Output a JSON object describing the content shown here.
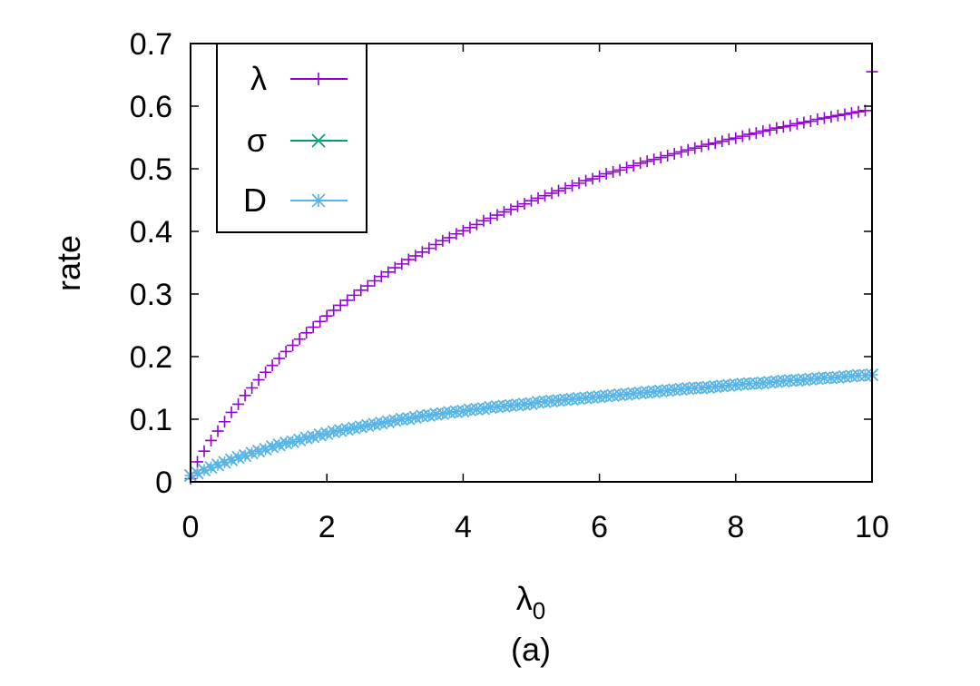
{
  "chart_data": {
    "type": "scatter",
    "title": "",
    "xlabel": "λ",
    "xlabel_sub": "0",
    "ylabel": "rate",
    "caption": "(a)",
    "xlim": [
      0,
      10
    ],
    "ylim": [
      0,
      0.7
    ],
    "xticks": [
      "0",
      "2",
      "4",
      "6",
      "8",
      "10"
    ],
    "yticks": [
      "0",
      "0.1",
      "0.2",
      "0.3",
      "0.4",
      "0.5",
      "0.6",
      "0.7"
    ],
    "grid": false,
    "legend_position": "top-left",
    "series": [
      {
        "name": "λ",
        "marker": "plus",
        "color": "#9400d3",
        "x": [
          0,
          0.1,
          0.2,
          0.3,
          0.4,
          0.5,
          0.6,
          0.7,
          0.8,
          0.9,
          1.0,
          1.1,
          1.2,
          1.3,
          1.4,
          1.5,
          1.6,
          1.7,
          1.8,
          1.9,
          2.0,
          2.1,
          2.2,
          2.3,
          2.4,
          2.5,
          2.6,
          2.7,
          2.8,
          2.9,
          3.0,
          3.1,
          3.2,
          3.3,
          3.4,
          3.5,
          3.6,
          3.7,
          3.8,
          3.9,
          4.0,
          4.1,
          4.2,
          4.3,
          4.4,
          4.5,
          4.6,
          4.7,
          4.8,
          4.9,
          5.0,
          5.1,
          5.2,
          5.3,
          5.4,
          5.5,
          5.6,
          5.7,
          5.8,
          5.9,
          6.0,
          6.1,
          6.2,
          6.3,
          6.4,
          6.5,
          6.6,
          6.7,
          6.8,
          6.9,
          7.0,
          7.1,
          7.2,
          7.3,
          7.4,
          7.5,
          7.6,
          7.7,
          7.8,
          7.9,
          8.0,
          8.1,
          8.2,
          8.3,
          8.4,
          8.5,
          8.6,
          8.7,
          8.8,
          8.9,
          9.0,
          9.1,
          9.2,
          9.3,
          9.4,
          9.5,
          9.6,
          9.7,
          9.8,
          9.9,
          10.0
        ],
        "y": [
          0.005,
          0.032,
          0.049,
          0.066,
          0.081,
          0.096,
          0.111,
          0.124,
          0.138,
          0.15,
          0.163,
          0.175,
          0.186,
          0.197,
          0.208,
          0.218,
          0.228,
          0.238,
          0.247,
          0.256,
          0.265,
          0.274,
          0.282,
          0.29,
          0.298,
          0.306,
          0.313,
          0.321,
          0.328,
          0.335,
          0.342,
          0.348,
          0.355,
          0.361,
          0.367,
          0.373,
          0.379,
          0.385,
          0.39,
          0.396,
          0.401,
          0.406,
          0.411,
          0.417,
          0.421,
          0.426,
          0.431,
          0.435,
          0.44,
          0.444,
          0.449,
          0.453,
          0.457,
          0.461,
          0.465,
          0.469,
          0.473,
          0.477,
          0.481,
          0.484,
          0.488,
          0.492,
          0.495,
          0.498,
          0.502,
          0.505,
          0.509,
          0.512,
          0.515,
          0.518,
          0.521,
          0.524,
          0.527,
          0.53,
          0.533,
          0.536,
          0.539,
          0.541,
          0.544,
          0.547,
          0.549,
          0.552,
          0.555,
          0.557,
          0.56,
          0.562,
          0.565,
          0.567,
          0.569,
          0.572,
          0.574,
          0.576,
          0.579,
          0.581,
          0.583,
          0.585,
          0.587,
          0.589,
          0.591,
          0.593,
          0.655
        ]
      },
      {
        "name": "σ",
        "marker": "cross",
        "color": "#009e73",
        "x": [
          0,
          0.1,
          0.2,
          0.3,
          0.4,
          0.5,
          0.6,
          0.7,
          0.8,
          0.9,
          1.0,
          1.1,
          1.2,
          1.3,
          1.4,
          1.5,
          1.6,
          1.7,
          1.8,
          1.9,
          2.0,
          2.1,
          2.2,
          2.3,
          2.4,
          2.5,
          2.6,
          2.7,
          2.8,
          2.9,
          3.0,
          3.1,
          3.2,
          3.3,
          3.4,
          3.5,
          3.6,
          3.7,
          3.8,
          3.9,
          4.0,
          4.1,
          4.2,
          4.3,
          4.4,
          4.5,
          4.6,
          4.7,
          4.8,
          4.9,
          5.0,
          5.1,
          5.2,
          5.3,
          5.4,
          5.5,
          5.6,
          5.7,
          5.8,
          5.9,
          6.0,
          6.1,
          6.2,
          6.3,
          6.4,
          6.5,
          6.6,
          6.7,
          6.8,
          6.9,
          7.0,
          7.1,
          7.2,
          7.3,
          7.4,
          7.5,
          7.6,
          7.7,
          7.8,
          7.9,
          8.0,
          8.1,
          8.2,
          8.3,
          8.4,
          8.5,
          8.6,
          8.7,
          8.8,
          8.9,
          9.0,
          9.1,
          9.2,
          9.3,
          9.4,
          9.5,
          9.6,
          9.7,
          9.8,
          9.9,
          10.0
        ],
        "y": [
          0.01,
          0.014,
          0.019,
          0.023,
          0.027,
          0.031,
          0.035,
          0.039,
          0.042,
          0.046,
          0.049,
          0.052,
          0.056,
          0.059,
          0.062,
          0.064,
          0.067,
          0.07,
          0.072,
          0.075,
          0.077,
          0.08,
          0.082,
          0.084,
          0.086,
          0.088,
          0.09,
          0.092,
          0.094,
          0.096,
          0.098,
          0.1,
          0.101,
          0.103,
          0.105,
          0.106,
          0.108,
          0.109,
          0.111,
          0.112,
          0.113,
          0.115,
          0.116,
          0.117,
          0.119,
          0.12,
          0.121,
          0.122,
          0.123,
          0.124,
          0.125,
          0.127,
          0.128,
          0.129,
          0.13,
          0.131,
          0.132,
          0.133,
          0.134,
          0.135,
          0.136,
          0.137,
          0.138,
          0.139,
          0.14,
          0.141,
          0.142,
          0.143,
          0.144,
          0.145,
          0.146,
          0.147,
          0.148,
          0.149,
          0.15,
          0.15,
          0.151,
          0.152,
          0.153,
          0.154,
          0.155,
          0.156,
          0.157,
          0.157,
          0.158,
          0.159,
          0.16,
          0.161,
          0.162,
          0.162,
          0.163,
          0.164,
          0.165,
          0.166,
          0.166,
          0.167,
          0.168,
          0.169,
          0.17,
          0.17,
          0.171
        ]
      },
      {
        "name": "D",
        "marker": "star",
        "color": "#56b4e9",
        "x": [
          0,
          0.1,
          0.2,
          0.3,
          0.4,
          0.5,
          0.6,
          0.7,
          0.8,
          0.9,
          1.0,
          1.1,
          1.2,
          1.3,
          1.4,
          1.5,
          1.6,
          1.7,
          1.8,
          1.9,
          2.0,
          2.1,
          2.2,
          2.3,
          2.4,
          2.5,
          2.6,
          2.7,
          2.8,
          2.9,
          3.0,
          3.1,
          3.2,
          3.3,
          3.4,
          3.5,
          3.6,
          3.7,
          3.8,
          3.9,
          4.0,
          4.1,
          4.2,
          4.3,
          4.4,
          4.5,
          4.6,
          4.7,
          4.8,
          4.9,
          5.0,
          5.1,
          5.2,
          5.3,
          5.4,
          5.5,
          5.6,
          5.7,
          5.8,
          5.9,
          6.0,
          6.1,
          6.2,
          6.3,
          6.4,
          6.5,
          6.6,
          6.7,
          6.8,
          6.9,
          7.0,
          7.1,
          7.2,
          7.3,
          7.4,
          7.5,
          7.6,
          7.7,
          7.8,
          7.9,
          8.0,
          8.1,
          8.2,
          8.3,
          8.4,
          8.5,
          8.6,
          8.7,
          8.8,
          8.9,
          9.0,
          9.1,
          9.2,
          9.3,
          9.4,
          9.5,
          9.6,
          9.7,
          9.8,
          9.9,
          10.0
        ],
        "y": [
          0.01,
          0.014,
          0.019,
          0.023,
          0.027,
          0.031,
          0.035,
          0.039,
          0.042,
          0.046,
          0.049,
          0.052,
          0.056,
          0.059,
          0.062,
          0.064,
          0.067,
          0.07,
          0.072,
          0.075,
          0.077,
          0.08,
          0.082,
          0.084,
          0.086,
          0.088,
          0.09,
          0.092,
          0.094,
          0.096,
          0.098,
          0.1,
          0.101,
          0.103,
          0.105,
          0.106,
          0.108,
          0.109,
          0.111,
          0.112,
          0.113,
          0.115,
          0.116,
          0.117,
          0.119,
          0.12,
          0.121,
          0.122,
          0.123,
          0.124,
          0.125,
          0.127,
          0.128,
          0.129,
          0.13,
          0.131,
          0.132,
          0.133,
          0.134,
          0.135,
          0.136,
          0.137,
          0.138,
          0.139,
          0.14,
          0.141,
          0.142,
          0.143,
          0.144,
          0.145,
          0.146,
          0.147,
          0.148,
          0.149,
          0.15,
          0.15,
          0.151,
          0.152,
          0.153,
          0.154,
          0.155,
          0.156,
          0.157,
          0.157,
          0.158,
          0.159,
          0.16,
          0.161,
          0.162,
          0.162,
          0.163,
          0.164,
          0.165,
          0.166,
          0.166,
          0.167,
          0.168,
          0.169,
          0.17,
          0.17,
          0.171
        ]
      }
    ]
  }
}
